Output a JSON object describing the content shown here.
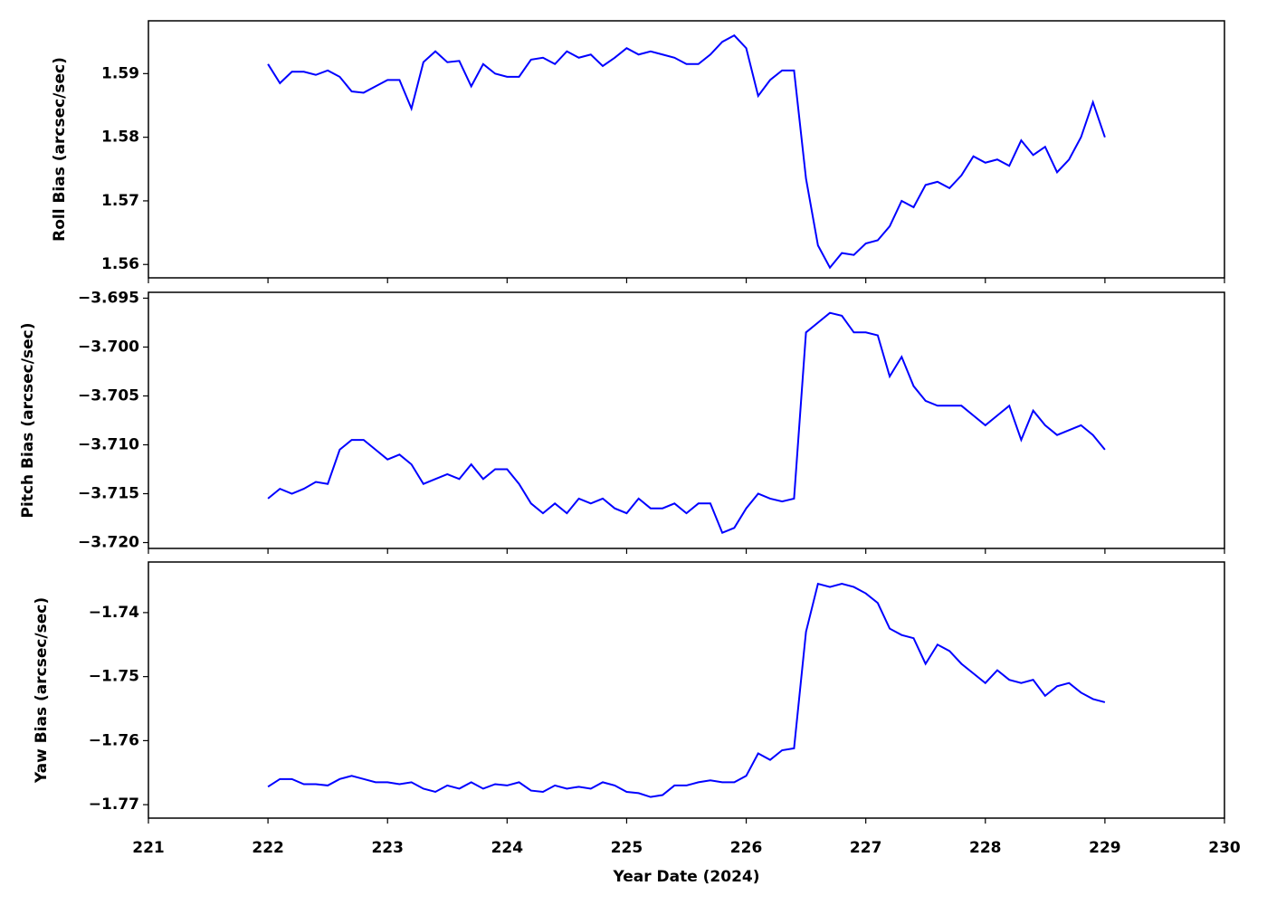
{
  "chart_data": [
    {
      "type": "line",
      "ylabel": "Roll Bias (arcsec/sec)",
      "color": "#0000ff",
      "x": [
        222.0,
        222.1,
        222.2,
        222.3,
        222.4,
        222.5,
        222.6,
        222.7,
        222.8,
        222.9,
        223.0,
        223.1,
        223.2,
        223.3,
        223.4,
        223.5,
        223.6,
        223.7,
        223.8,
        223.9,
        224.0,
        224.1,
        224.2,
        224.3,
        224.4,
        224.5,
        224.6,
        224.7,
        224.8,
        224.9,
        225.0,
        225.1,
        225.2,
        225.3,
        225.4,
        225.5,
        225.6,
        225.7,
        225.8,
        225.9,
        226.0,
        226.1,
        226.2,
        226.3,
        226.4,
        226.5,
        226.6,
        226.7,
        226.8,
        226.9,
        227.0,
        227.1,
        227.2,
        227.3,
        227.4,
        227.5,
        227.6,
        227.7,
        227.8,
        227.9,
        228.0,
        228.1,
        228.2,
        228.3,
        228.4,
        228.5,
        228.6,
        228.7,
        228.8,
        228.9,
        229.0
      ],
      "values": [
        1.5915,
        1.5885,
        1.5903,
        1.5903,
        1.5898,
        1.5905,
        1.5895,
        1.5872,
        1.587,
        1.588,
        1.589,
        1.589,
        1.5845,
        1.5918,
        1.5935,
        1.5918,
        1.592,
        1.588,
        1.5915,
        1.59,
        1.5895,
        1.5895,
        1.5922,
        1.5925,
        1.5915,
        1.5935,
        1.5925,
        1.593,
        1.5912,
        1.5925,
        1.594,
        1.593,
        1.5935,
        1.593,
        1.5925,
        1.5915,
        1.5915,
        1.593,
        1.595,
        1.596,
        1.594,
        1.5865,
        1.589,
        1.5905,
        1.5905,
        1.5735,
        1.563,
        1.5595,
        1.5618,
        1.5615,
        1.5633,
        1.5638,
        1.566,
        1.57,
        1.569,
        1.5725,
        1.573,
        1.572,
        1.574,
        1.577,
        1.576,
        1.5765,
        1.5755,
        1.5795,
        1.5772,
        1.5785,
        1.5745,
        1.5765,
        1.58,
        1.5855,
        1.58
      ],
      "xlim": [
        221,
        230
      ],
      "xticks": [
        221,
        222,
        223,
        224,
        225,
        226,
        227,
        228,
        229,
        230
      ],
      "ylim": [
        1.5579,
        1.5983
      ],
      "yticks": [
        1.56,
        1.57,
        1.58,
        1.59
      ]
    },
    {
      "type": "line",
      "ylabel": "Pitch Bias (arcsec/sec)",
      "color": "#0000ff",
      "x": [
        222.0,
        222.1,
        222.2,
        222.3,
        222.4,
        222.5,
        222.6,
        222.7,
        222.8,
        222.9,
        223.0,
        223.1,
        223.2,
        223.3,
        223.4,
        223.5,
        223.6,
        223.7,
        223.8,
        223.9,
        224.0,
        224.1,
        224.2,
        224.3,
        224.4,
        224.5,
        224.6,
        224.7,
        224.8,
        224.9,
        225.0,
        225.1,
        225.2,
        225.3,
        225.4,
        225.5,
        225.6,
        225.7,
        225.8,
        225.9,
        226.0,
        226.1,
        226.2,
        226.3,
        226.4,
        226.5,
        226.6,
        226.7,
        226.8,
        226.9,
        227.0,
        227.1,
        227.2,
        227.3,
        227.4,
        227.5,
        227.6,
        227.7,
        227.8,
        227.9,
        228.0,
        228.1,
        228.2,
        228.3,
        228.4,
        228.5,
        228.6,
        228.7,
        228.8,
        228.9,
        229.0
      ],
      "values": [
        -3.7155,
        -3.7145,
        -3.715,
        -3.7145,
        -3.7138,
        -3.714,
        -3.7105,
        -3.7095,
        -3.7095,
        -3.7105,
        -3.7115,
        -3.711,
        -3.712,
        -3.714,
        -3.7135,
        -3.713,
        -3.7135,
        -3.712,
        -3.7135,
        -3.7125,
        -3.7125,
        -3.714,
        -3.716,
        -3.717,
        -3.716,
        -3.717,
        -3.7155,
        -3.716,
        -3.7155,
        -3.7165,
        -3.717,
        -3.7155,
        -3.7165,
        -3.7165,
        -3.716,
        -3.717,
        -3.716,
        -3.716,
        -3.719,
        -3.7185,
        -3.7165,
        -3.715,
        -3.7155,
        -3.7158,
        -3.7155,
        -3.6985,
        -3.6975,
        -3.6965,
        -3.6968,
        -3.6985,
        -3.6985,
        -3.6988,
        -3.703,
        -3.701,
        -3.704,
        -3.7055,
        -3.706,
        -3.706,
        -3.706,
        -3.707,
        -3.708,
        -3.707,
        -3.706,
        -3.7095,
        -3.7065,
        -3.708,
        -3.709,
        -3.7085,
        -3.708,
        -3.709,
        -3.7105
      ],
      "xlim": [
        221,
        230
      ],
      "xticks": [
        221,
        222,
        223,
        224,
        225,
        226,
        227,
        228,
        229,
        230
      ],
      "ylim": [
        -3.7206,
        -3.6944
      ],
      "yticks": [
        {
          "value": -3.72,
          "label": "−3.720"
        },
        {
          "value": -3.715,
          "label": "−3.715"
        },
        {
          "value": -3.71,
          "label": "−3.710"
        },
        {
          "value": -3.705,
          "label": "−3.705"
        },
        {
          "value": -3.7,
          "label": "−3.700"
        },
        {
          "value": -3.695,
          "label": "−3.695"
        }
      ]
    },
    {
      "type": "line",
      "ylabel": "Yaw Bias (arcsec/sec)",
      "xlabel": "Year Date (2024)",
      "color": "#0000ff",
      "x": [
        222.0,
        222.1,
        222.2,
        222.3,
        222.4,
        222.5,
        222.6,
        222.7,
        222.8,
        222.9,
        223.0,
        223.1,
        223.2,
        223.3,
        223.4,
        223.5,
        223.6,
        223.7,
        223.8,
        223.9,
        224.0,
        224.1,
        224.2,
        224.3,
        224.4,
        224.5,
        224.6,
        224.7,
        224.8,
        224.9,
        225.0,
        225.1,
        225.2,
        225.3,
        225.4,
        225.5,
        225.6,
        225.7,
        225.8,
        225.9,
        226.0,
        226.1,
        226.2,
        226.3,
        226.4,
        226.5,
        226.6,
        226.7,
        226.8,
        226.9,
        227.0,
        227.1,
        227.2,
        227.3,
        227.4,
        227.5,
        227.6,
        227.7,
        227.8,
        227.9,
        228.0,
        228.1,
        228.2,
        228.3,
        228.4,
        228.5,
        228.6,
        228.7,
        228.8,
        228.9,
        229.0
      ],
      "values": [
        -1.7672,
        -1.766,
        -1.766,
        -1.7668,
        -1.7668,
        -1.767,
        -1.766,
        -1.7655,
        -1.766,
        -1.7665,
        -1.7665,
        -1.7668,
        -1.7665,
        -1.7675,
        -1.768,
        -1.767,
        -1.7675,
        -1.7665,
        -1.7675,
        -1.7668,
        -1.767,
        -1.7665,
        -1.7678,
        -1.768,
        -1.767,
        -1.7675,
        -1.7672,
        -1.7675,
        -1.7665,
        -1.767,
        -1.768,
        -1.7682,
        -1.7688,
        -1.7685,
        -1.767,
        -1.767,
        -1.7665,
        -1.7662,
        -1.7665,
        -1.7665,
        -1.7655,
        -1.762,
        -1.763,
        -1.7615,
        -1.7612,
        -1.743,
        -1.7355,
        -1.736,
        -1.7355,
        -1.736,
        -1.737,
        -1.7385,
        -1.7425,
        -1.7435,
        -1.744,
        -1.748,
        -1.745,
        -1.746,
        -1.748,
        -1.7495,
        -1.751,
        -1.749,
        -1.7505,
        -1.751,
        -1.7505,
        -1.753,
        -1.7515,
        -1.751,
        -1.7525,
        -1.7535,
        -1.754
      ],
      "xlim": [
        221,
        230
      ],
      "xticks": [
        221,
        222,
        223,
        224,
        225,
        226,
        227,
        228,
        229,
        230
      ],
      "ylim": [
        -1.7721,
        -1.7321
      ],
      "yticks": [
        {
          "value": -1.77,
          "label": "−1.77"
        },
        {
          "value": -1.76,
          "label": "−1.76"
        },
        {
          "value": -1.75,
          "label": "−1.75"
        },
        {
          "value": -1.74,
          "label": "−1.74"
        }
      ]
    }
  ]
}
